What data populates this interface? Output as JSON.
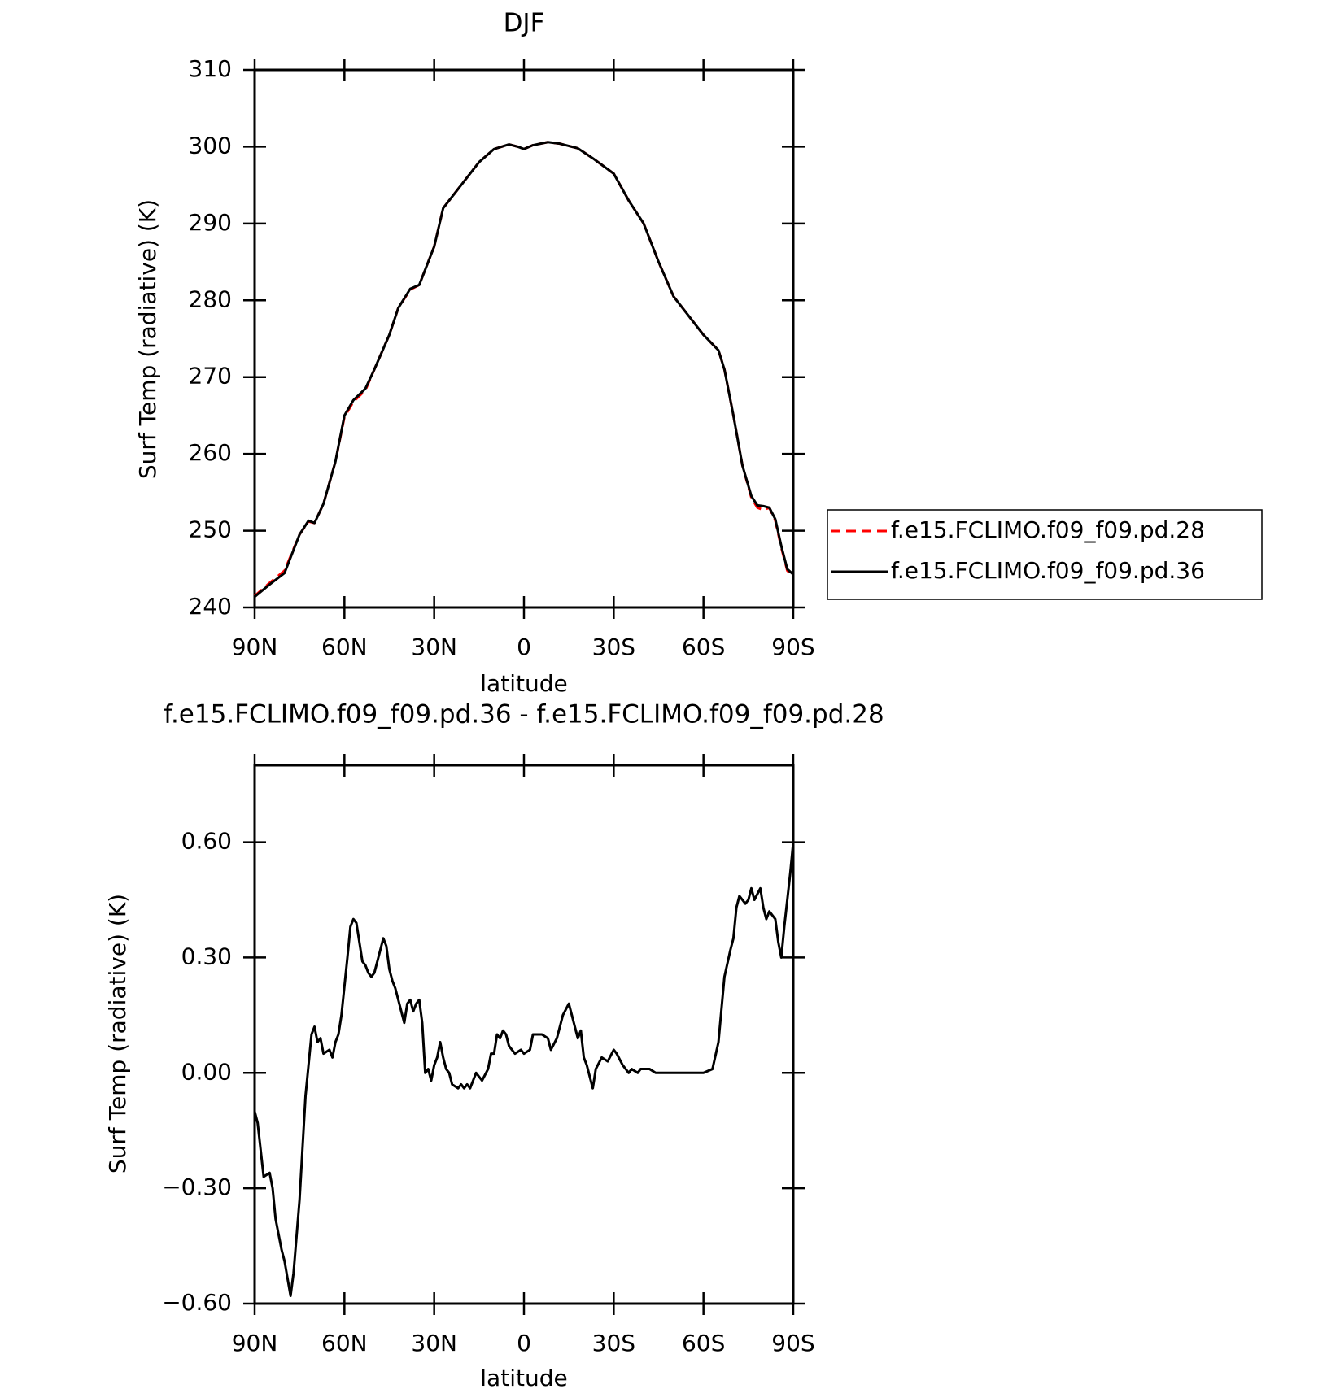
{
  "chart_data": [
    {
      "type": "line",
      "title": "DJF",
      "x_label": "latitude",
      "y_label": "Surf Temp (radiative) (K)",
      "xlim": [
        90,
        -90
      ],
      "ylim": [
        240,
        310
      ],
      "xticks": [
        {
          "value": 90,
          "label": "90N"
        },
        {
          "value": 60,
          "label": "60N"
        },
        {
          "value": 30,
          "label": "30N"
        },
        0,
        {
          "value": -30,
          "label": "30S"
        },
        {
          "value": -60,
          "label": "60S"
        },
        {
          "value": -90,
          "label": "90S"
        }
      ],
      "yticks": [
        240,
        250,
        260,
        270,
        280,
        290,
        300,
        310
      ],
      "x": [
        90,
        85,
        80,
        75,
        72,
        70,
        67,
        63,
        60,
        57,
        53,
        50,
        45,
        42,
        38,
        35,
        30,
        27,
        20,
        15,
        10,
        5,
        2,
        0,
        -3,
        -8,
        -12,
        -18,
        -23,
        -30,
        -35,
        -40,
        -45,
        -50,
        -55,
        -60,
        -65,
        -67,
        -70,
        -73,
        -76,
        -78,
        -80,
        -82,
        -84,
        -86,
        -88,
        -90
      ],
      "series": [
        {
          "name": "f.e15.FCLIMO.f09_f09.pd.28",
          "color": "#ff0000",
          "dashed": true,
          "values": [
            241.5,
            243.2,
            244.8,
            249.5,
            251.2,
            251,
            253.5,
            259,
            264.8,
            266.8,
            268.3,
            271,
            275.5,
            279,
            281.4,
            282,
            287,
            292,
            295.5,
            298,
            299.7,
            300.3,
            300,
            299.7,
            300.2,
            300.6,
            300.4,
            299.8,
            298.5,
            296.5,
            293,
            290,
            285,
            280.5,
            278,
            275.5,
            273.5,
            271,
            265,
            258.5,
            254.3,
            253,
            252.7,
            253,
            251.3,
            247.8,
            244.8,
            244.1
          ]
        },
        {
          "name": "f.e15.FCLIMO.f09_f09.pd.36",
          "color": "#000000",
          "dashed": false,
          "values": [
            241.4,
            243,
            244.5,
            249.5,
            251.3,
            251,
            253.5,
            259,
            265,
            267,
            268.5,
            271,
            275.5,
            279,
            281.5,
            282,
            287,
            292,
            295.5,
            298,
            299.7,
            300.3,
            300,
            299.7,
            300.2,
            300.6,
            300.4,
            299.8,
            298.5,
            296.5,
            293,
            290,
            285,
            280.5,
            278,
            275.5,
            273.5,
            271,
            265,
            258.5,
            254.5,
            253.3,
            253.2,
            253,
            251.5,
            248,
            245,
            244.3
          ]
        }
      ]
    },
    {
      "type": "line",
      "title": "f.e15.FCLIMO.f09_f09.pd.36 - f.e15.FCLIMO.f09_f09.pd.28",
      "x_label": "latitude",
      "y_label": "Surf Temp (radiative) (K)",
      "xlim": [
        90,
        -90
      ],
      "ylim": [
        -0.6,
        0.8
      ],
      "xticks": [
        {
          "value": 90,
          "label": "90N"
        },
        {
          "value": 60,
          "label": "60N"
        },
        {
          "value": 30,
          "label": "30N"
        },
        0,
        {
          "value": -30,
          "label": "30S"
        },
        {
          "value": -60,
          "label": "60S"
        },
        {
          "value": -90,
          "label": "90S"
        }
      ],
      "yticks": [
        {
          "value": -0.6,
          "label": "−0.60"
        },
        {
          "value": -0.3,
          "label": "−0.30"
        },
        {
          "value": 0,
          "label": "0.00"
        },
        {
          "value": 0.3,
          "label": "0.30"
        },
        {
          "value": 0.6,
          "label": "0.60"
        }
      ],
      "color": "#000000",
      "x": [
        90,
        89,
        87,
        85,
        84,
        83,
        81,
        80,
        78,
        77,
        75,
        73,
        71,
        70,
        69,
        68,
        67,
        65,
        64,
        63,
        62,
        61,
        59,
        58,
        57,
        56,
        54,
        53,
        52,
        51,
        50,
        48,
        47,
        46,
        45,
        44,
        43,
        41,
        40,
        39,
        38,
        37,
        36,
        35,
        34,
        33,
        32,
        31,
        30,
        29,
        28,
        27,
        26,
        25,
        24,
        22,
        21,
        20,
        19,
        18,
        16,
        15,
        14,
        12,
        11,
        10,
        9,
        8,
        7,
        6,
        5,
        4,
        3,
        1,
        0,
        -2,
        -3,
        -4,
        -6,
        -8,
        -9,
        -11,
        -13,
        -15,
        -17,
        -18,
        -19,
        -20,
        -21,
        -23,
        -24,
        -26,
        -28,
        -30,
        -31,
        -33,
        -35,
        -36,
        -38,
        -39,
        -42,
        -44,
        -46,
        -50,
        -55,
        -60,
        -63,
        -65,
        -67,
        -69,
        -70,
        -71,
        -72,
        -74,
        -75,
        -76,
        -77,
        -79,
        -80,
        -81,
        -82,
        -84,
        -85,
        -86,
        -87,
        -89,
        -90
      ],
      "values": [
        -0.1,
        -0.13,
        -0.27,
        -0.26,
        -0.3,
        -0.38,
        -0.46,
        -0.49,
        -0.58,
        -0.52,
        -0.33,
        -0.06,
        0.1,
        0.12,
        0.08,
        0.09,
        0.05,
        0.06,
        0.04,
        0.08,
        0.1,
        0.15,
        0.3,
        0.38,
        0.4,
        0.39,
        0.29,
        0.28,
        0.26,
        0.25,
        0.26,
        0.32,
        0.35,
        0.33,
        0.27,
        0.24,
        0.22,
        0.16,
        0.13,
        0.18,
        0.19,
        0.16,
        0.18,
        0.19,
        0.13,
        0.0,
        0.01,
        -0.02,
        0.02,
        0.04,
        0.08,
        0.04,
        0.01,
        0.0,
        -0.03,
        -0.04,
        -0.03,
        -0.04,
        -0.03,
        -0.04,
        0.0,
        -0.01,
        -0.02,
        0.01,
        0.05,
        0.05,
        0.1,
        0.09,
        0.11,
        0.1,
        0.07,
        0.06,
        0.05,
        0.06,
        0.05,
        0.06,
        0.1,
        0.1,
        0.1,
        0.09,
        0.06,
        0.09,
        0.15,
        0.18,
        0.12,
        0.09,
        0.11,
        0.04,
        0.02,
        -0.04,
        0.01,
        0.04,
        0.03,
        0.06,
        0.05,
        0.02,
        0.0,
        0.01,
        0.0,
        0.01,
        0.01,
        0.0,
        0.0,
        0.0,
        0.0,
        0.0,
        0.01,
        0.08,
        0.25,
        0.32,
        0.35,
        0.43,
        0.46,
        0.44,
        0.45,
        0.48,
        0.45,
        0.48,
        0.43,
        0.4,
        0.42,
        0.4,
        0.34,
        0.3,
        0.38,
        0.52,
        0.6
      ]
    }
  ]
}
